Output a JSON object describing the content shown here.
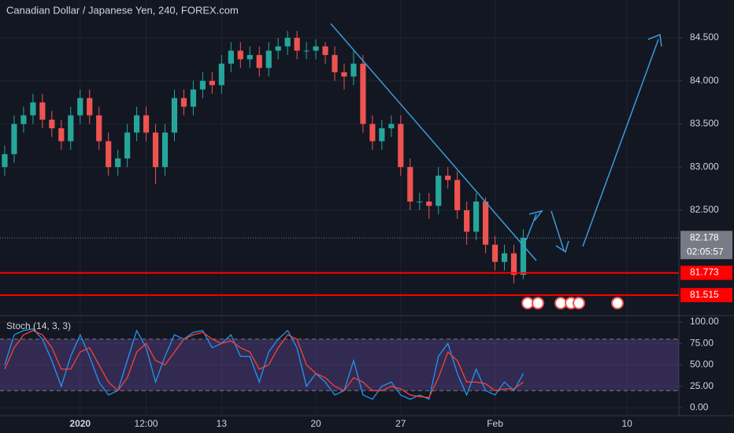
{
  "chart_data": [
    {
      "type": "candlestick",
      "title": "Canadian Dollar / Japanese Yen, 240, FOREX.com",
      "categories": [
        null,
        null,
        null,
        null,
        null,
        null,
        null,
        null,
        "2020",
        null,
        null,
        null,
        null,
        null,
        null,
        "12:00",
        null,
        null,
        null,
        null,
        null,
        null,
        null,
        "13",
        null,
        null,
        null,
        null,
        null,
        null,
        null,
        null,
        null,
        "20",
        null,
        null,
        null,
        null,
        null,
        null,
        null,
        null,
        "27",
        null,
        null,
        null,
        null,
        null,
        null,
        null,
        null,
        null,
        "Feb",
        null,
        null,
        null,
        null,
        null,
        null,
        null,
        null,
        null,
        null,
        null,
        null,
        null,
        "10",
        null,
        null,
        null,
        null,
        null
      ],
      "open": [
        83.0,
        83.15,
        83.5,
        83.6,
        83.75,
        83.55,
        83.45,
        83.3,
        83.6,
        83.8,
        83.6,
        83.3,
        83.0,
        83.1,
        83.4,
        83.6,
        83.4,
        83.0,
        83.4,
        83.8,
        83.7,
        83.9,
        84.0,
        83.95,
        84.2,
        84.35,
        84.25,
        84.3,
        84.15,
        84.35,
        84.4,
        84.5,
        84.35,
        84.35,
        84.4,
        84.3,
        84.1,
        84.05,
        84.2,
        83.5,
        83.3,
        83.45,
        83.5,
        83.0,
        82.6,
        82.6,
        82.55,
        82.9,
        82.85,
        82.5,
        82.25,
        82.6,
        82.1,
        81.9,
        82.0,
        81.75,
        null,
        null,
        null,
        null,
        null,
        null,
        null,
        null,
        null,
        null,
        null,
        null,
        null,
        null,
        null,
        null
      ],
      "high": [
        83.25,
        83.6,
        83.7,
        83.85,
        83.85,
        83.65,
        83.55,
        83.7,
        83.9,
        83.9,
        83.7,
        83.4,
        83.2,
        83.5,
        83.7,
        83.7,
        83.5,
        83.5,
        83.9,
        83.9,
        84.0,
        84.1,
        84.1,
        84.3,
        84.45,
        84.45,
        84.4,
        84.4,
        84.45,
        84.5,
        84.58,
        84.58,
        84.45,
        84.48,
        84.45,
        84.4,
        84.2,
        84.35,
        84.3,
        83.6,
        83.55,
        83.6,
        83.6,
        83.1,
        82.7,
        82.7,
        83.0,
        83.0,
        82.95,
        82.6,
        82.7,
        82.65,
        82.2,
        82.1,
        82.1,
        82.28,
        null,
        null,
        null,
        null,
        null,
        null,
        null,
        null,
        null,
        null,
        null,
        null,
        null,
        null,
        null,
        null
      ],
      "low": [
        82.9,
        83.05,
        83.4,
        83.5,
        83.45,
        83.35,
        83.2,
        83.2,
        83.5,
        83.5,
        83.2,
        82.9,
        82.9,
        83.0,
        83.3,
        83.3,
        82.8,
        82.9,
        83.3,
        83.6,
        83.6,
        83.8,
        83.85,
        83.85,
        84.1,
        84.15,
        84.15,
        84.05,
        84.05,
        84.25,
        84.3,
        84.25,
        84.25,
        84.25,
        84.2,
        84.0,
        83.9,
        83.95,
        83.4,
        83.2,
        83.2,
        83.35,
        82.9,
        82.5,
        82.5,
        82.4,
        82.45,
        82.75,
        82.4,
        82.1,
        82.15,
        82.0,
        81.8,
        81.8,
        81.65,
        81.7,
        null,
        null,
        null,
        null,
        null,
        null,
        null,
        null,
        null,
        null,
        null,
        null,
        null,
        null,
        null,
        null
      ],
      "close": [
        83.15,
        83.5,
        83.6,
        83.75,
        83.55,
        83.45,
        83.3,
        83.6,
        83.8,
        83.6,
        83.3,
        83.0,
        83.1,
        83.4,
        83.6,
        83.4,
        83.0,
        83.4,
        83.8,
        83.7,
        83.9,
        84.0,
        83.95,
        84.2,
        84.35,
        84.25,
        84.3,
        84.15,
        84.35,
        84.4,
        84.5,
        84.35,
        84.35,
        84.4,
        84.3,
        84.1,
        84.05,
        84.2,
        83.5,
        83.3,
        83.45,
        83.5,
        83.0,
        82.6,
        82.6,
        82.55,
        82.9,
        82.85,
        82.5,
        82.25,
        82.6,
        82.1,
        81.9,
        82.0,
        81.75,
        82.18,
        null,
        null,
        null,
        null,
        null,
        null,
        null,
        null,
        null,
        null,
        null,
        null,
        null,
        null,
        null,
        null
      ],
      "up_color": "#26a69a",
      "down_color": "#ef5350",
      "ylim": [
        81.285,
        84.938
      ],
      "yticks": [
        {
          "value": 82.5,
          "label": "82.500"
        },
        {
          "value": 83,
          "label": "83.000"
        },
        {
          "value": 83.5,
          "label": "83.500"
        },
        {
          "value": 84,
          "label": "84.000"
        },
        {
          "value": 84.5,
          "label": "84.500"
        }
      ],
      "grid": true,
      "last_price": {
        "value": 82.178,
        "label": "82.178",
        "countdown": "02:05:57"
      },
      "levels": [
        {
          "value": 81.773,
          "label": "81.773",
          "color": "#ff0000"
        },
        {
          "value": 81.515,
          "label": "81.515",
          "color": "#ff0000"
        }
      ],
      "event_labels": [
        "2",
        "3",
        "2",
        "2",
        "3",
        "4"
      ]
    },
    {
      "type": "line",
      "title": "Stoch (14, 3, 3)",
      "series": [
        {
          "color": "#2196f3",
          "values": [
            50,
            85,
            90,
            92,
            80,
            55,
            25,
            60,
            85,
            60,
            30,
            15,
            20,
            55,
            90,
            70,
            30,
            60,
            85,
            80,
            88,
            90,
            70,
            75,
            85,
            60,
            60,
            30,
            65,
            80,
            90,
            70,
            25,
            40,
            30,
            15,
            20,
            55,
            15,
            10,
            25,
            30,
            15,
            10,
            15,
            10,
            60,
            75,
            40,
            15,
            45,
            20,
            15,
            30,
            20,
            40,
            null,
            null,
            null,
            null,
            null,
            null,
            null,
            null,
            null,
            null,
            null,
            null,
            null,
            null,
            null,
            null
          ]
        },
        {
          "color": "#f44336",
          "values": [
            45,
            70,
            85,
            90,
            85,
            70,
            45,
            45,
            65,
            70,
            50,
            30,
            20,
            35,
            65,
            75,
            55,
            50,
            65,
            80,
            85,
            88,
            80,
            75,
            78,
            70,
            65,
            45,
            50,
            70,
            85,
            80,
            50,
            40,
            35,
            25,
            20,
            35,
            30,
            20,
            20,
            25,
            22,
            15,
            13,
            12,
            35,
            65,
            55,
            30,
            30,
            28,
            20,
            22,
            22,
            30,
            null,
            null,
            null,
            null,
            null,
            null,
            null,
            null,
            null,
            null,
            null,
            null,
            null,
            null,
            null,
            null
          ]
        }
      ],
      "band": [
        20,
        80
      ],
      "band_color": "#7e57c2",
      "ylim": [
        -11,
        106.4
      ],
      "yticks": [
        {
          "value": 0,
          "label": "0.00"
        },
        {
          "value": 25,
          "label": "25.00"
        },
        {
          "value": 50,
          "label": "50.00"
        },
        {
          "value": 75,
          "label": "75.00"
        },
        {
          "value": 100,
          "label": "100.00"
        }
      ],
      "grid": true
    }
  ]
}
